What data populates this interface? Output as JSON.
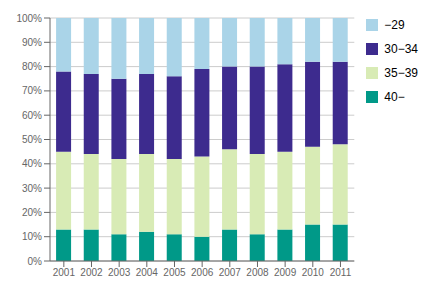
{
  "chart_data": {
    "type": "bar",
    "stacked": true,
    "categories": [
      "2001",
      "2002",
      "2003",
      "2004",
      "2005",
      "2006",
      "2007",
      "2008",
      "2009",
      "2010",
      "2011"
    ],
    "series": [
      {
        "name": "40−",
        "color": "#009988",
        "values": [
          13,
          13,
          11,
          12,
          11,
          10,
          13,
          11,
          13,
          15,
          15
        ]
      },
      {
        "name": "35−39",
        "color": "#d8ebb5",
        "values": [
          32,
          31,
          31,
          32,
          31,
          33,
          33,
          33,
          32,
          32,
          33
        ]
      },
      {
        "name": "30−34",
        "color": "#3d2b8e",
        "values": [
          33,
          33,
          33,
          33,
          34,
          36,
          34,
          36,
          36,
          35,
          34
        ]
      },
      {
        "name": "−29",
        "color": "#aad4e8",
        "values": [
          22,
          23,
          25,
          23,
          24,
          21,
          20,
          20,
          19,
          18,
          18
        ]
      }
    ],
    "ylim": [
      0,
      100
    ],
    "yticks": [
      {
        "value": 0,
        "label": "0%"
      },
      {
        "value": 10,
        "label": "10%"
      },
      {
        "value": 20,
        "label": "20%"
      },
      {
        "value": 30,
        "label": "30%"
      },
      {
        "value": 40,
        "label": "40%"
      },
      {
        "value": 50,
        "label": "50%"
      },
      {
        "value": 60,
        "label": "60%"
      },
      {
        "value": 70,
        "label": "70%"
      },
      {
        "value": 80,
        "label": "80%"
      },
      {
        "value": 90,
        "label": "90%"
      },
      {
        "value": 100,
        "label": "100%"
      }
    ],
    "grid": true,
    "legend": "right"
  }
}
